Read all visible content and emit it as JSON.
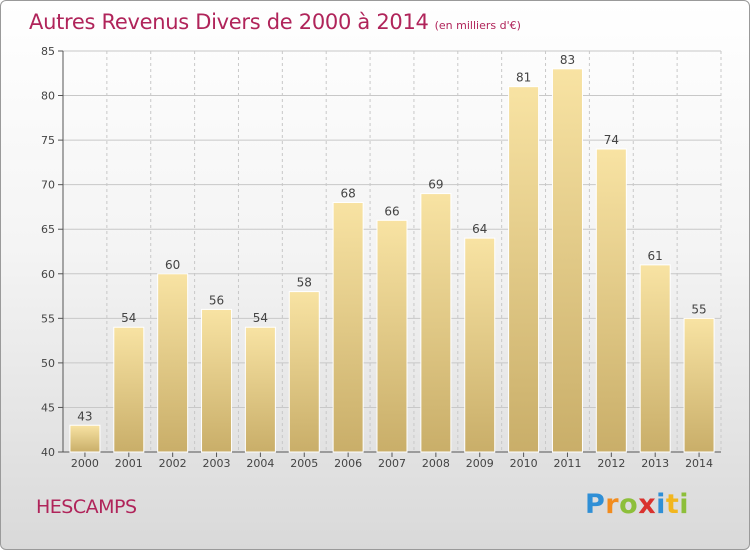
{
  "header": {
    "title": "Autres Revenus Divers de 2000 à 2014",
    "subtitle": "(en milliers d'€)"
  },
  "footer": {
    "commune": "HESCAMPS",
    "logo_text": "Proxiti"
  },
  "colors": {
    "title": "#b0245a",
    "bar_light": "#f8e3a3",
    "bar_dark": "#c9ae69",
    "grid": "#c8c8c8"
  },
  "chart_data": {
    "type": "bar",
    "categories": [
      "2000",
      "2001",
      "2002",
      "2003",
      "2004",
      "2005",
      "2006",
      "2007",
      "2008",
      "2009",
      "2010",
      "2011",
      "2012",
      "2013",
      "2014"
    ],
    "values": [
      43,
      54,
      60,
      56,
      54,
      58,
      68,
      66,
      69,
      64,
      81,
      83,
      74,
      61,
      55
    ],
    "title": "Autres Revenus Divers de 2000 à 2014",
    "subtitle": "(en milliers d'€)",
    "ylim": [
      40,
      85
    ],
    "yticks": [
      40,
      45,
      50,
      55,
      60,
      65,
      70,
      75,
      80,
      85
    ],
    "grid": true,
    "data_labels": true
  }
}
